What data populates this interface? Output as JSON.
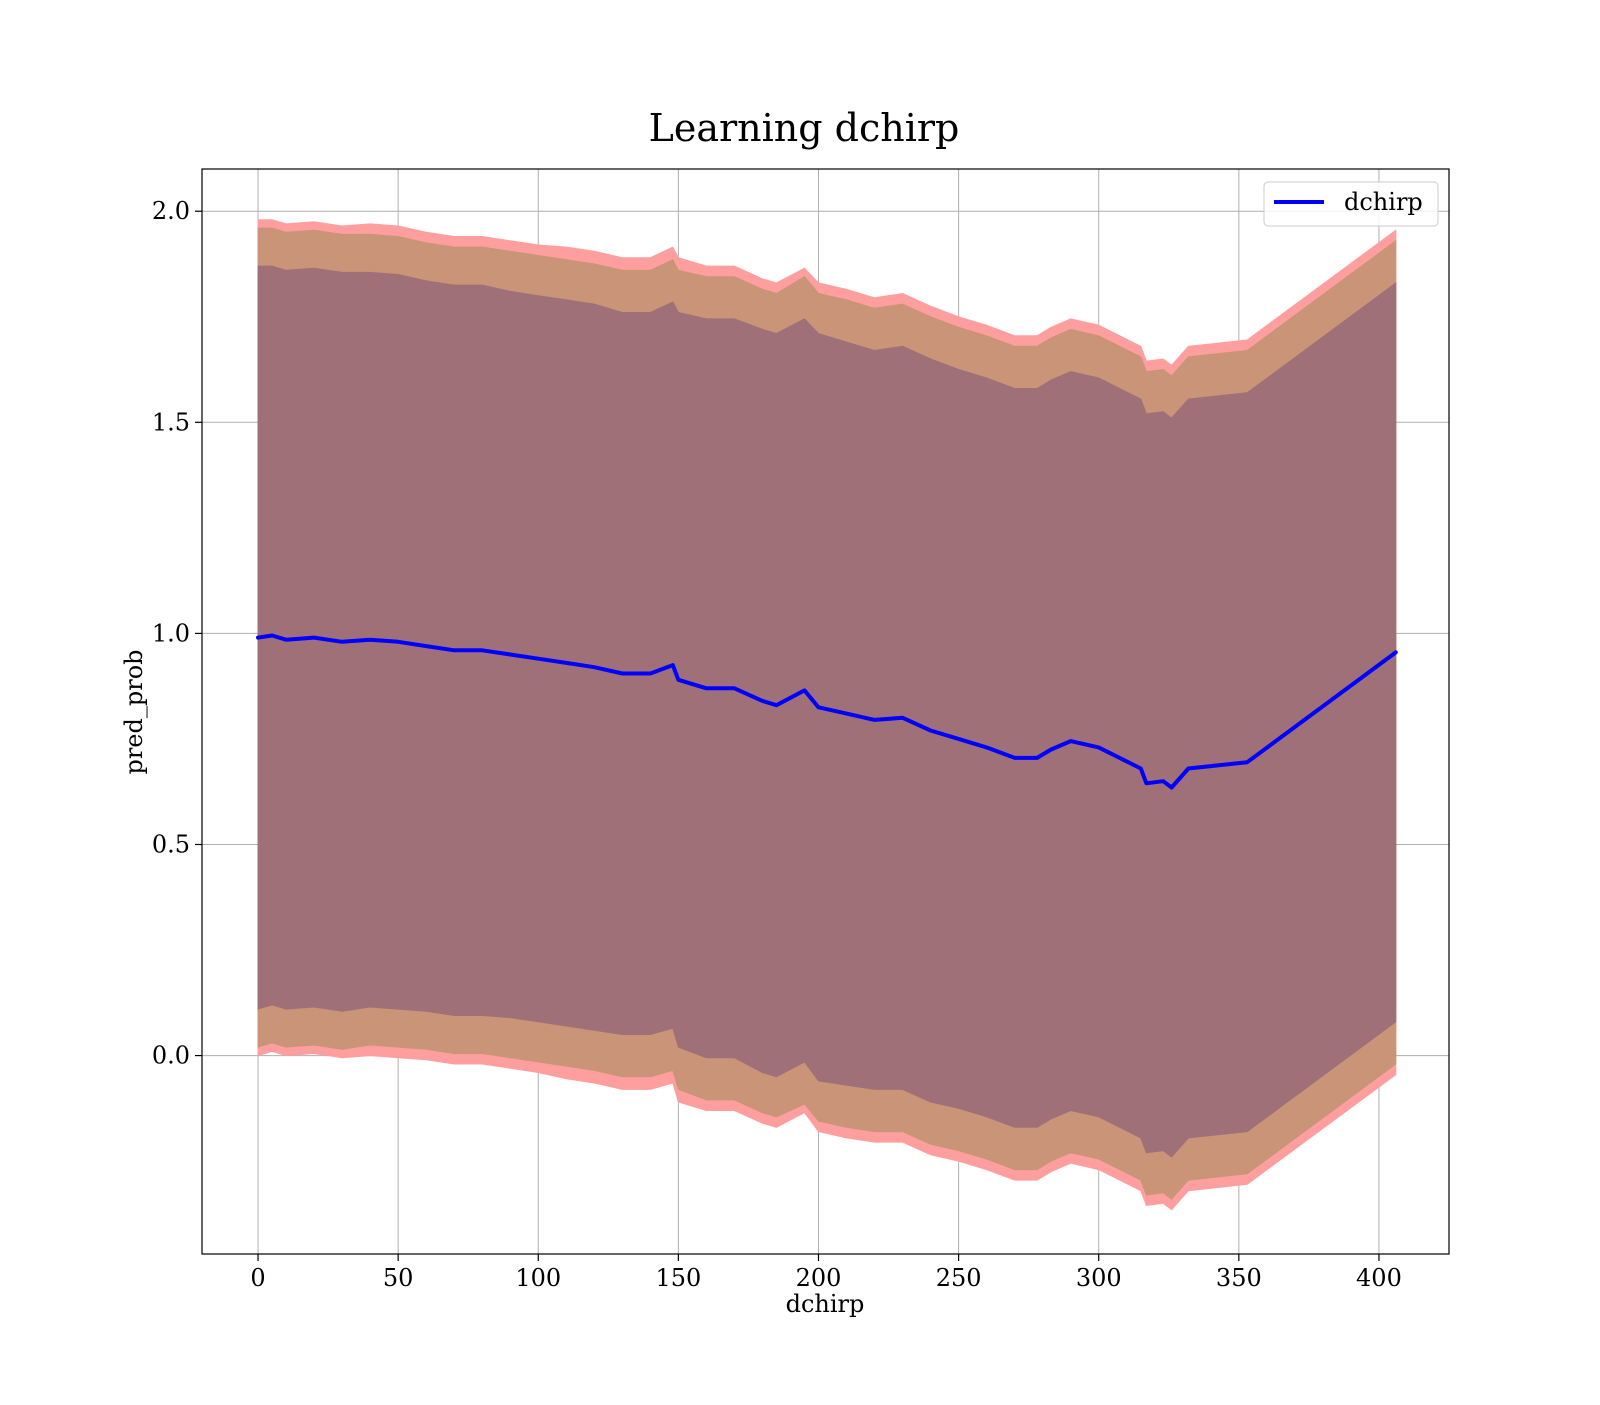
{
  "chart_data": {
    "type": "line",
    "title": "Learning dchirp",
    "xlabel": "dchirp",
    "ylabel": "pred_prob",
    "xlim": [
      -20,
      425
    ],
    "ylim": [
      -0.47,
      2.1
    ],
    "xticks": [
      0,
      50,
      100,
      150,
      200,
      250,
      300,
      350,
      400
    ],
    "xtick_labels": [
      "0",
      "50",
      "100",
      "150",
      "200",
      "250",
      "300",
      "350",
      "400"
    ],
    "yticks": [
      0.0,
      0.5,
      1.0,
      1.5,
      2.0
    ],
    "ytick_labels": [
      "0.0",
      "0.5",
      "1.0",
      "1.5",
      "2.0"
    ],
    "grid": true,
    "legend": {
      "position": "top-right",
      "entries": [
        "dchirp"
      ]
    },
    "colors": {
      "line": "#0000ff",
      "outer_band": "#ff9e9e",
      "middle_band": "#c99478",
      "inner_band": "#a07079",
      "grid": "#b0b0b0"
    },
    "series": [
      {
        "name": "dchirp",
        "x": [
          0,
          5,
          10,
          20,
          30,
          40,
          50,
          60,
          70,
          80,
          90,
          100,
          110,
          120,
          130,
          140,
          148,
          150,
          160,
          170,
          180,
          185,
          195,
          200,
          210,
          220,
          230,
          240,
          250,
          260,
          270,
          278,
          283,
          290,
          300,
          315,
          317,
          323,
          326,
          332,
          353,
          406
        ],
        "y": [
          0.99,
          0.995,
          0.985,
          0.99,
          0.98,
          0.985,
          0.98,
          0.97,
          0.96,
          0.96,
          0.95,
          0.94,
          0.93,
          0.92,
          0.905,
          0.905,
          0.925,
          0.89,
          0.87,
          0.87,
          0.84,
          0.83,
          0.865,
          0.825,
          0.81,
          0.795,
          0.8,
          0.77,
          0.75,
          0.73,
          0.705,
          0.705,
          0.725,
          0.745,
          0.73,
          0.68,
          0.645,
          0.65,
          0.635,
          0.68,
          0.695,
          0.955
        ],
        "band_inner_half_width": [
          0.88,
          0.875,
          0.875,
          0.875,
          0.875,
          0.87,
          0.87,
          0.865,
          0.865,
          0.865,
          0.86,
          0.86,
          0.86,
          0.86,
          0.855,
          0.855,
          0.86,
          0.87,
          0.875,
          0.875,
          0.88,
          0.88,
          0.88,
          0.885,
          0.88,
          0.875,
          0.88,
          0.88,
          0.875,
          0.875,
          0.875,
          0.875,
          0.875,
          0.875,
          0.875,
          0.875,
          0.875,
          0.875,
          0.875,
          0.875,
          0.875,
          0.875
        ],
        "band_middle_half_width": [
          0.97,
          0.965,
          0.965,
          0.965,
          0.965,
          0.96,
          0.96,
          0.955,
          0.955,
          0.955,
          0.955,
          0.955,
          0.955,
          0.955,
          0.955,
          0.955,
          0.96,
          0.97,
          0.975,
          0.975,
          0.975,
          0.975,
          0.98,
          0.98,
          0.98,
          0.975,
          0.98,
          0.98,
          0.975,
          0.975,
          0.975,
          0.975,
          0.975,
          0.975,
          0.975,
          0.975,
          0.975,
          0.975,
          0.975,
          0.975,
          0.975,
          0.975
        ],
        "band_outer_half_width": [
          0.99,
          0.985,
          0.985,
          0.985,
          0.985,
          0.985,
          0.985,
          0.98,
          0.98,
          0.98,
          0.98,
          0.98,
          0.985,
          0.985,
          0.985,
          0.985,
          0.99,
          1.0,
          1.0,
          1.0,
          1.0,
          1.0,
          1.0,
          1.005,
          1.005,
          1.0,
          1.005,
          1.005,
          1.0,
          1.0,
          1.0,
          1.0,
          1.0,
          1.0,
          1.0,
          1.0,
          1.0,
          1.0,
          1.0,
          1.0,
          1.0,
          1.0
        ]
      }
    ]
  }
}
